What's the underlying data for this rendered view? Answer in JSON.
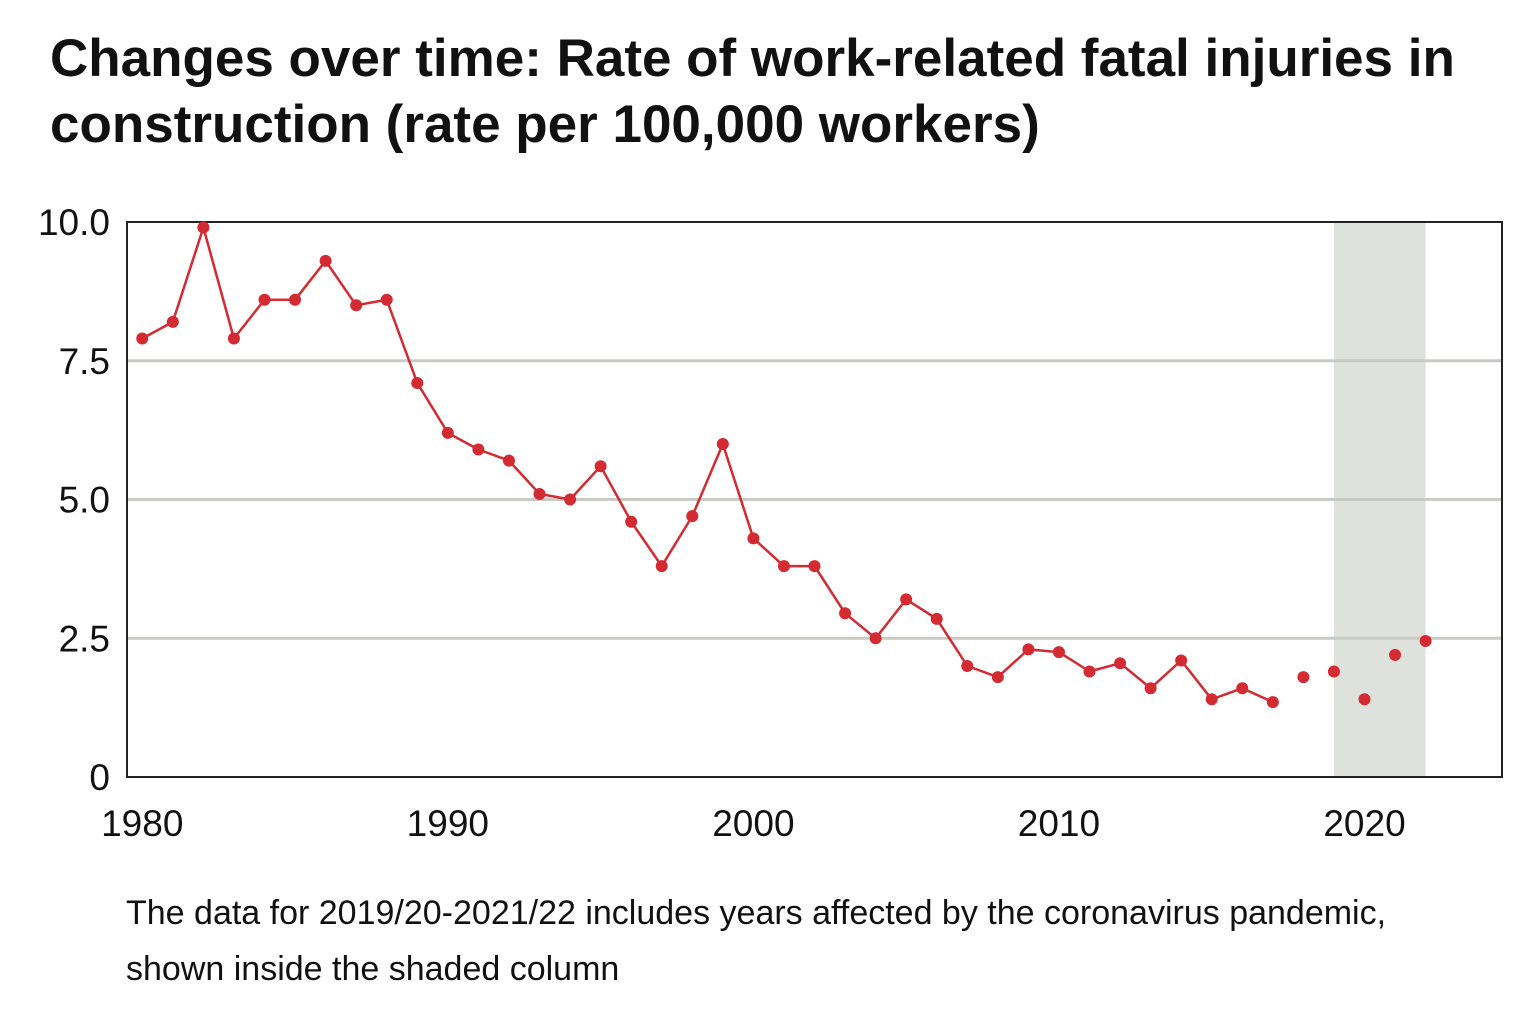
{
  "chart_data": {
    "type": "line",
    "title": "Changes over time: Rate of work-related fatal injuries in construction (rate per 100,000 workers)",
    "footnote": "The data for 2019/20-2021/22 includes years affected by the coronavirus pandemic, shown inside the shaded column",
    "xlim": [
      1979.5,
      2024.5
    ],
    "ylim": [
      0,
      10
    ],
    "x_ticks": [
      {
        "value": 1980,
        "label": "1980"
      },
      {
        "value": 1990,
        "label": "1990"
      },
      {
        "value": 2000,
        "label": "2000"
      },
      {
        "value": 2010,
        "label": "2010"
      },
      {
        "value": 2020,
        "label": "2020"
      }
    ],
    "y_ticks": [
      {
        "value": 0,
        "label": "0"
      },
      {
        "value": 2.5,
        "label": "2.5"
      },
      {
        "value": 5,
        "label": "5.0"
      },
      {
        "value": 7.5,
        "label": "7.5"
      },
      {
        "value": 10,
        "label": "10.0"
      }
    ],
    "grid": {
      "horizontal": true,
      "vertical": false
    },
    "shaded_region": {
      "x_start": 2019.0,
      "x_end": 2022.0,
      "label": "coronavirus pandemic years"
    },
    "series": [
      {
        "points": [
          {
            "x": 1980,
            "y": 7.9
          },
          {
            "x": 1981,
            "y": 8.2
          },
          {
            "x": 1982,
            "y": 9.9
          },
          {
            "x": 1983,
            "y": 7.9
          },
          {
            "x": 1984,
            "y": 8.6
          },
          {
            "x": 1985,
            "y": 8.6
          },
          {
            "x": 1986,
            "y": 9.3
          },
          {
            "x": 1987,
            "y": 8.5
          },
          {
            "x": 1988,
            "y": 8.6
          },
          {
            "x": 1989,
            "y": 7.1
          },
          {
            "x": 1990,
            "y": 6.2
          },
          {
            "x": 1991,
            "y": 5.9
          },
          {
            "x": 1992,
            "y": 5.7
          },
          {
            "x": 1993,
            "y": 5.1
          },
          {
            "x": 1994,
            "y": 5.0
          },
          {
            "x": 1995,
            "y": 5.6
          },
          {
            "x": 1996,
            "y": 4.6
          },
          {
            "x": 1997,
            "y": 3.8
          },
          {
            "x": 1998,
            "y": 4.7
          },
          {
            "x": 1999,
            "y": 6.0
          },
          {
            "x": 2000,
            "y": 4.3
          },
          {
            "x": 2001,
            "y": 3.8
          },
          {
            "x": 2002,
            "y": 3.8
          },
          {
            "x": 2003,
            "y": 2.95
          },
          {
            "x": 2004,
            "y": 2.5
          },
          {
            "x": 2005,
            "y": 3.2
          },
          {
            "x": 2006,
            "y": 2.85
          },
          {
            "x": 2007,
            "y": 2.0
          },
          {
            "x": 2008,
            "y": 1.8
          },
          {
            "x": 2009,
            "y": 2.3
          },
          {
            "x": 2010,
            "y": 2.25
          },
          {
            "x": 2011,
            "y": 1.9
          },
          {
            "x": 2012,
            "y": 2.05
          },
          {
            "x": 2013,
            "y": 1.6
          },
          {
            "x": 2014,
            "y": 2.1
          },
          {
            "x": 2015,
            "y": 1.4
          },
          {
            "x": 2016,
            "y": 1.6
          },
          {
            "x": 2017,
            "y": 1.35
          }
        ],
        "connected": true,
        "color": "#d42a32"
      },
      {
        "points": [
          {
            "x": 2018,
            "y": 1.8
          },
          {
            "x": 2019,
            "y": 1.9
          },
          {
            "x": 2020,
            "y": 1.4
          },
          {
            "x": 2021,
            "y": 2.2
          },
          {
            "x": 2022,
            "y": 2.45
          }
        ],
        "connected": false,
        "color": "#d42a32"
      }
    ],
    "colors": {
      "line": "#d42a32",
      "marker": "#d42a32",
      "grid": "#c9cbc6",
      "shade": "#dfe2dc",
      "frame": "#222222"
    }
  }
}
